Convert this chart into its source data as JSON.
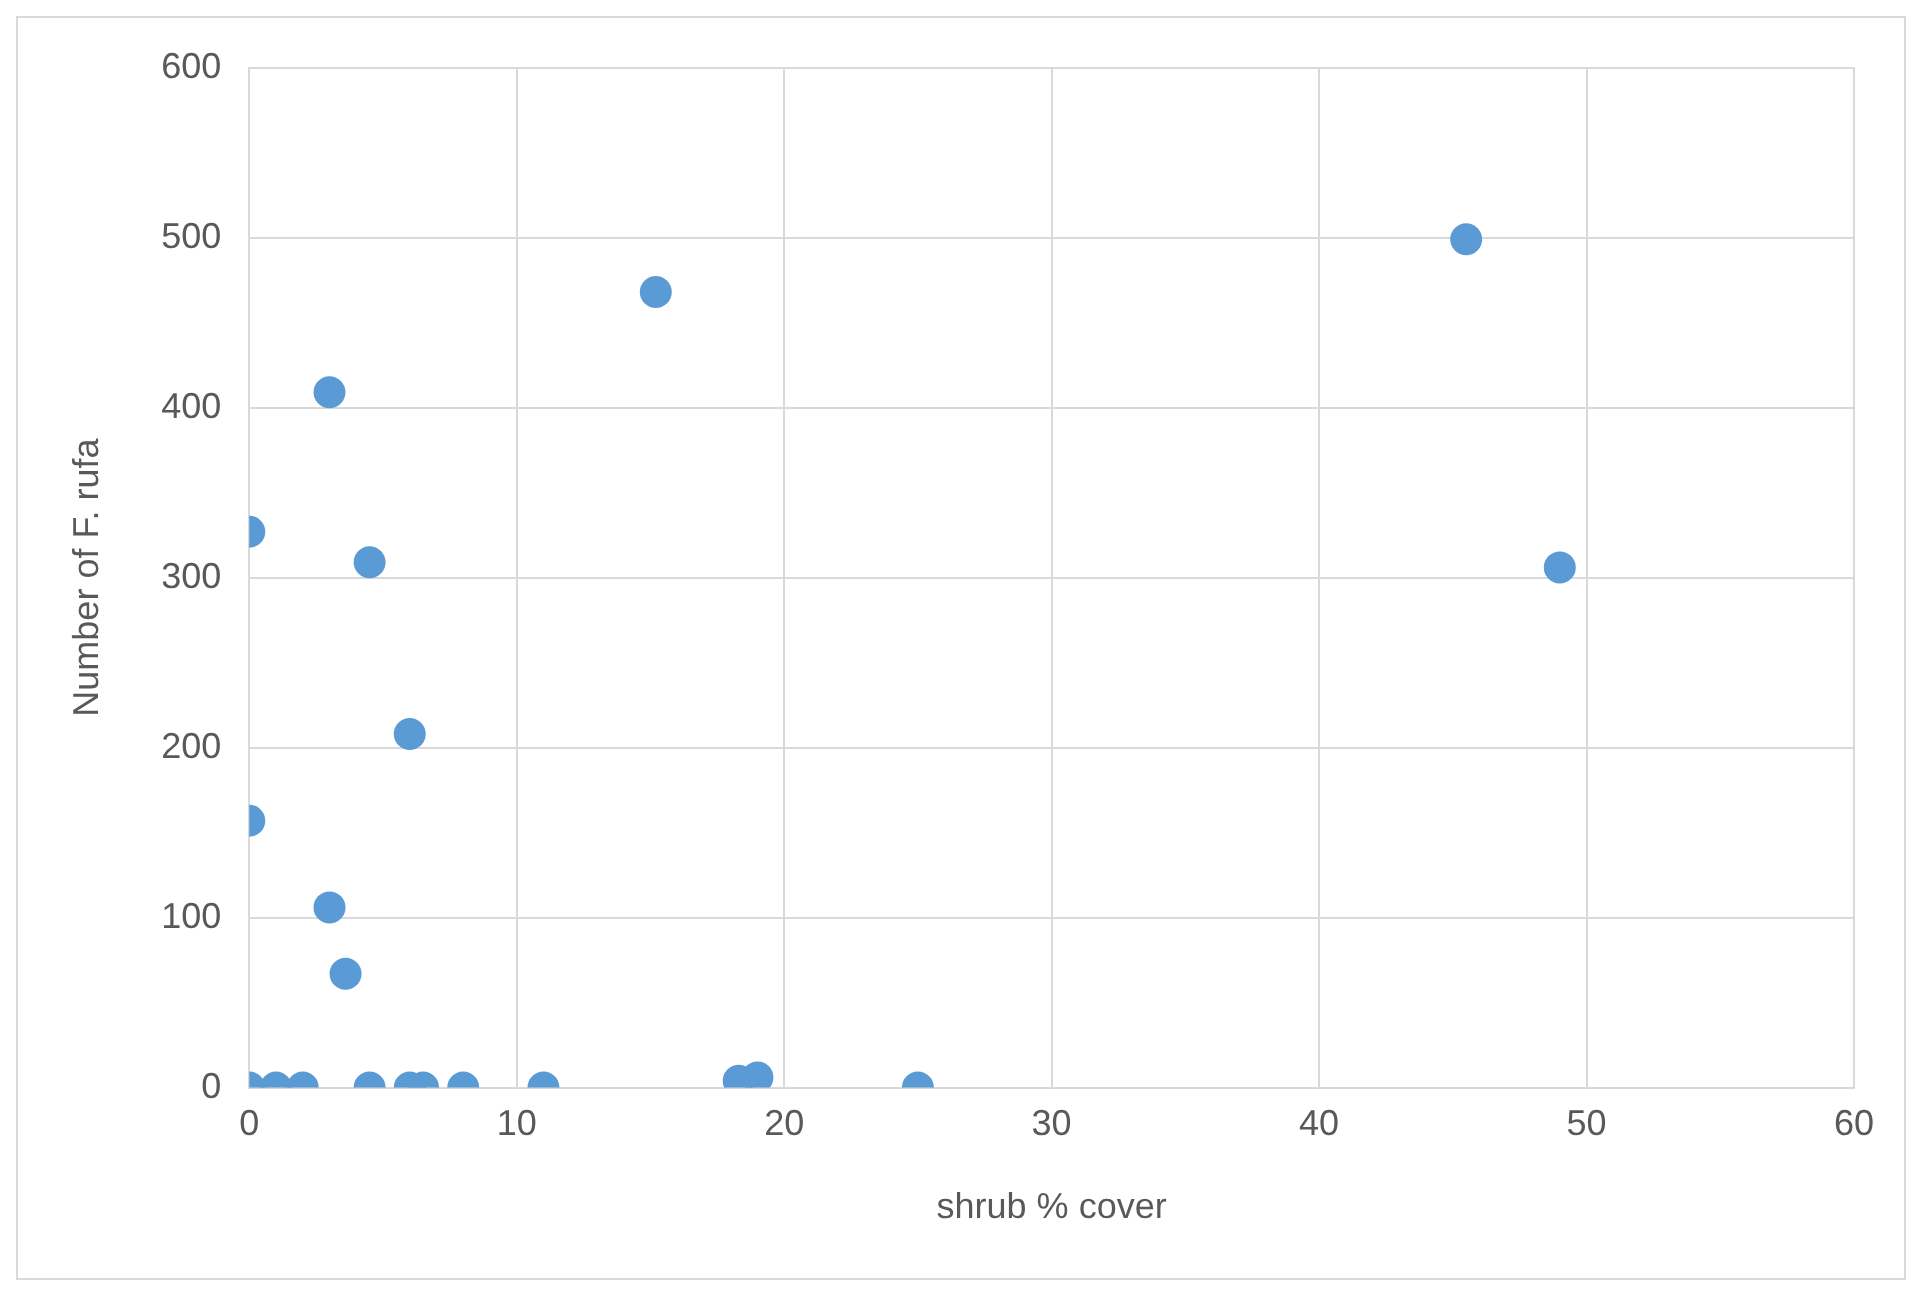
{
  "chart_data": {
    "type": "scatter",
    "xlabel": "shrub % cover",
    "ylabel": "Number of F. rufa",
    "x": [
      0,
      0,
      0,
      1,
      2,
      3,
      3,
      3.6,
      4.5,
      4.5,
      6,
      6,
      6.5,
      8,
      11,
      15.2,
      18.3,
      19,
      25,
      45.5,
      49
    ],
    "series": [
      {
        "color": "#5b9bd5",
        "values": [
          327,
          157,
          0,
          0,
          0,
          409,
          106,
          67,
          309,
          0,
          208,
          0,
          0,
          0,
          0,
          468,
          4,
          6,
          0,
          499,
          306
        ]
      }
    ],
    "xlim": [
      0,
      60
    ],
    "xticks": [
      0,
      10,
      20,
      30,
      40,
      50,
      60
    ],
    "ylim": [
      0,
      600
    ],
    "yticks": [
      0,
      100,
      200,
      300,
      400,
      500,
      600
    ],
    "grid": true,
    "legend": false,
    "marker": "circle"
  }
}
